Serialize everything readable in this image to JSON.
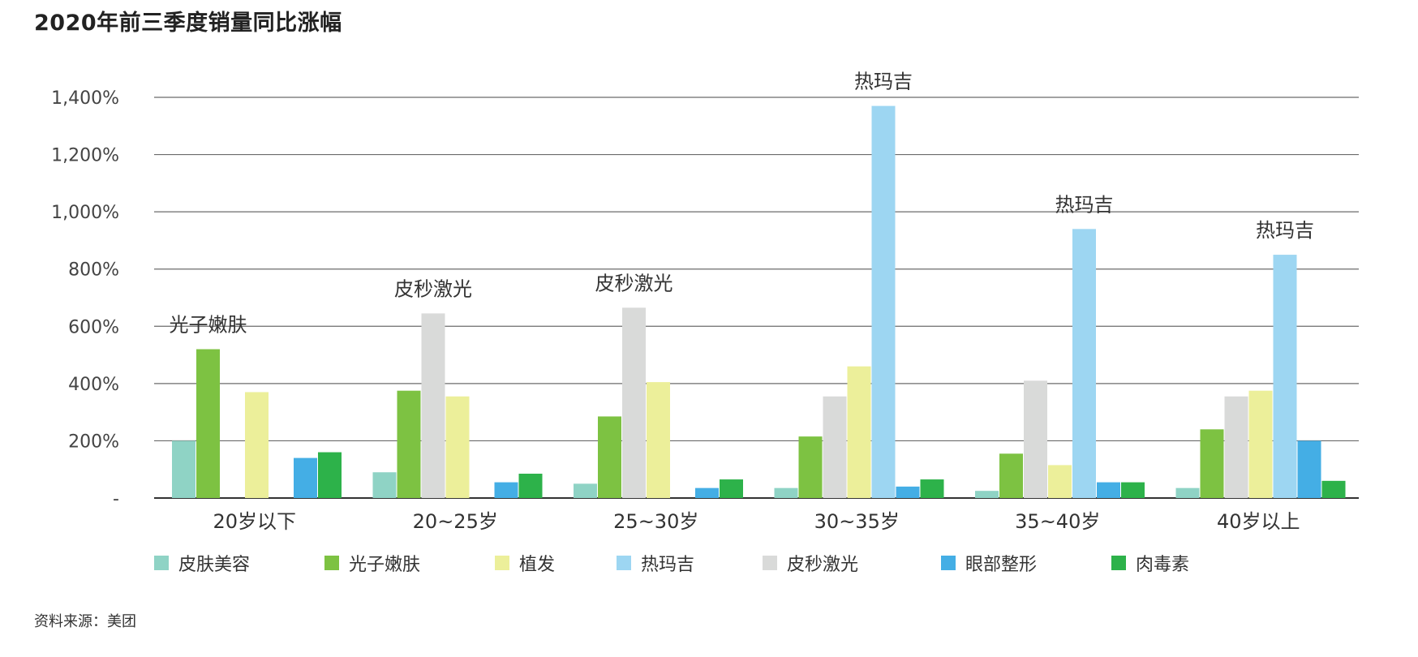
{
  "title": "2020年前三季度销量同比涨幅",
  "source": "资料来源：美团",
  "chart_data": {
    "type": "bar",
    "categories": [
      "20岁以下",
      "20~25岁",
      "25~30岁",
      "30~35岁",
      "35~40岁",
      "40岁以上"
    ],
    "series": [
      {
        "name": "皮肤美容",
        "color": "#8fd3c5",
        "values": [
          200,
          90,
          50,
          35,
          25,
          35
        ]
      },
      {
        "name": "光子嫩肤",
        "color": "#7dc242",
        "values": [
          520,
          375,
          285,
          215,
          155,
          240
        ]
      },
      {
        "name": "皮秒激光",
        "color": "#d9dad9",
        "values": [
          0,
          645,
          665,
          355,
          410,
          355
        ]
      },
      {
        "name": "植发",
        "color": "#ecef9a",
        "values": [
          370,
          355,
          405,
          460,
          115,
          375
        ]
      },
      {
        "name": "热玛吉",
        "color": "#9dd6f2",
        "values": [
          0,
          0,
          0,
          1370,
          940,
          850
        ]
      },
      {
        "name": "眼部整形",
        "color": "#44aee5",
        "values": [
          140,
          55,
          35,
          40,
          55,
          200
        ]
      },
      {
        "name": "肉毒素",
        "color": "#2db24a",
        "values": [
          160,
          85,
          65,
          65,
          55,
          60
        ]
      }
    ],
    "legend_order": [
      "皮肤美容",
      "光子嫩肤",
      "植发",
      "热玛吉",
      "皮秒激光",
      "眼部整形",
      "肉毒素"
    ],
    "annotations": [
      {
        "category": "20岁以下",
        "series": "光子嫩肤",
        "text": "光子嫩肤"
      },
      {
        "category": "20~25岁",
        "series": "皮秒激光",
        "text": "皮秒激光"
      },
      {
        "category": "25~30岁",
        "series": "皮秒激光",
        "text": "皮秒激光"
      },
      {
        "category": "30~35岁",
        "series": "热玛吉",
        "text": "热玛吉"
      },
      {
        "category": "35~40岁",
        "series": "热玛吉",
        "text": "热玛吉"
      },
      {
        "category": "40岁以上",
        "series": "热玛吉",
        "text": "热玛吉"
      }
    ],
    "yticks": [
      {
        "value": 0,
        "label": "-"
      },
      {
        "value": 200,
        "label": "200%"
      },
      {
        "value": 400,
        "label": "400%"
      },
      {
        "value": 600,
        "label": "600%"
      },
      {
        "value": 800,
        "label": "800%"
      },
      {
        "value": 1000,
        "label": "1,000%"
      },
      {
        "value": 1200,
        "label": "1,200%"
      },
      {
        "value": 1400,
        "label": "1,400%"
      }
    ],
    "ylim": [
      0,
      1400
    ],
    "grid": true,
    "legend_position": "bottom"
  }
}
